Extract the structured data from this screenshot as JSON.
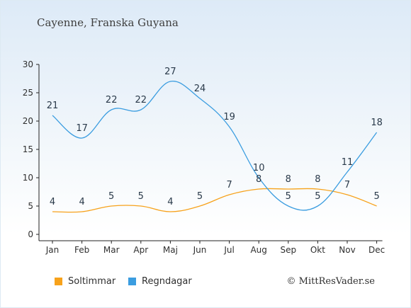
{
  "title": "Cayenne, Franska Guyana",
  "credit": "© MittResVader.se",
  "colors": {
    "sun": "#f7a21b",
    "rain": "#3b9de0"
  },
  "chart_data": {
    "type": "line",
    "categories": [
      "Jan",
      "Feb",
      "Mar",
      "Apr",
      "Maj",
      "Jun",
      "Jul",
      "Aug",
      "Sep",
      "Okt",
      "Nov",
      "Dec"
    ],
    "ylim": [
      0,
      30
    ],
    "yticks": [
      "0",
      "5",
      "10",
      "15",
      "20",
      "25",
      "30"
    ],
    "grid": false,
    "legend_position": "bottom-left",
    "series": [
      {
        "name": "Soltimmar",
        "color": "#f7a21b",
        "values": [
          4,
          4,
          5,
          5,
          4,
          5,
          7,
          8,
          8,
          8,
          7,
          5
        ]
      },
      {
        "name": "Regndagar",
        "color": "#3b9de0",
        "values": [
          21,
          17,
          22,
          22,
          27,
          24,
          19,
          10,
          5,
          5,
          11,
          18
        ]
      }
    ]
  }
}
